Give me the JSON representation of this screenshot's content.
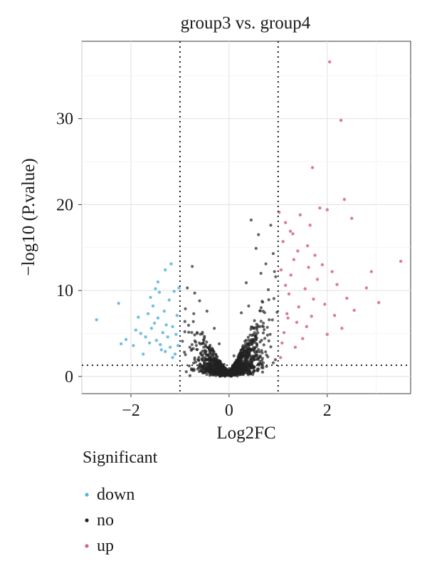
{
  "chart_data": {
    "type": "scatter",
    "title": "group3 vs. group4",
    "xlabel": "Log2FC",
    "ylabel": "−log10 (P.value)",
    "xlim": [
      -3.0,
      3.7
    ],
    "ylim": [
      -2.0,
      39.0
    ],
    "xticks": [
      -2,
      0,
      2
    ],
    "xtick_labels": [
      "−2",
      "0",
      "2"
    ],
    "yticks": [
      0,
      10,
      20,
      30
    ],
    "ytick_labels": [
      "0",
      "10",
      "20",
      "30"
    ],
    "grid": true,
    "thresholds": {
      "log2fc": [
        -1,
        1
      ],
      "neg_log10_p": 1.3
    },
    "legend": {
      "title": "Significant",
      "position": "bottom-left",
      "entries": [
        {
          "label": "down",
          "color": "#5ab4de"
        },
        {
          "label": "no",
          "color": "#222222"
        },
        {
          "label": "up",
          "color": "#d4668a"
        }
      ]
    },
    "series": [
      {
        "name": "down",
        "color": "#5ab4de",
        "points": [
          [
            -2.7,
            6.6
          ],
          [
            -2.25,
            8.5
          ],
          [
            -2.2,
            3.8
          ],
          [
            -2.1,
            4.3
          ],
          [
            -1.95,
            3.6
          ],
          [
            -1.9,
            5.4
          ],
          [
            -1.85,
            6.9
          ],
          [
            -1.75,
            2.6
          ],
          [
            -1.7,
            4.6
          ],
          [
            -1.65,
            7.3
          ],
          [
            -1.62,
            3.9
          ],
          [
            -1.58,
            5.6
          ],
          [
            -1.55,
            8.2
          ],
          [
            -1.52,
            6.2
          ],
          [
            -1.48,
            4.2
          ],
          [
            -1.45,
            11.0
          ],
          [
            -1.42,
            9.8
          ],
          [
            -1.38,
            3.1
          ],
          [
            -1.35,
            5.1
          ],
          [
            -1.32,
            7.6
          ],
          [
            -1.3,
            12.4
          ],
          [
            -1.28,
            6.0
          ],
          [
            -1.25,
            4.6
          ],
          [
            -1.22,
            8.9
          ],
          [
            -1.2,
            3.4
          ],
          [
            -1.18,
            13.1
          ],
          [
            -1.15,
            5.8
          ],
          [
            -1.12,
            9.9
          ],
          [
            -1.1,
            2.6
          ],
          [
            -1.08,
            4.9
          ],
          [
            -1.06,
            7.1
          ],
          [
            -1.04,
            3.6
          ],
          [
            -1.02,
            10.3
          ],
          [
            -1.15,
            2.2
          ],
          [
            -1.3,
            2.9
          ],
          [
            -1.45,
            6.8
          ],
          [
            -1.6,
            9.2
          ],
          [
            -1.8,
            5.0
          ],
          [
            -1.5,
            10.2
          ],
          [
            -1.4,
            3.7
          ]
        ]
      },
      {
        "name": "up",
        "color": "#d4668a",
        "points": [
          [
            2.05,
            36.6
          ],
          [
            2.28,
            29.8
          ],
          [
            1.7,
            24.3
          ],
          [
            2.35,
            20.6
          ],
          [
            2.5,
            18.4
          ],
          [
            1.85,
            19.6
          ],
          [
            2.0,
            19.4
          ],
          [
            1.02,
            19.1
          ],
          [
            1.15,
            17.9
          ],
          [
            1.3,
            16.6
          ],
          [
            1.45,
            18.8
          ],
          [
            1.6,
            15.2
          ],
          [
            1.75,
            14.1
          ],
          [
            1.9,
            13.0
          ],
          [
            2.1,
            12.2
          ],
          [
            2.2,
            10.7
          ],
          [
            2.4,
            9.1
          ],
          [
            2.55,
            7.7
          ],
          [
            2.8,
            10.3
          ],
          [
            2.9,
            12.2
          ],
          [
            3.05,
            8.6
          ],
          [
            3.5,
            13.4
          ],
          [
            2.3,
            5.6
          ],
          [
            2.0,
            4.9
          ],
          [
            1.05,
            2.2
          ],
          [
            1.08,
            3.9
          ],
          [
            1.12,
            5.1
          ],
          [
            1.18,
            7.3
          ],
          [
            1.22,
            9.6
          ],
          [
            1.26,
            11.8
          ],
          [
            1.32,
            13.6
          ],
          [
            1.38,
            6.3
          ],
          [
            1.42,
            8.1
          ],
          [
            1.5,
            4.4
          ],
          [
            1.55,
            10.2
          ],
          [
            1.62,
            12.7
          ],
          [
            1.68,
            7.0
          ],
          [
            1.72,
            9.0
          ],
          [
            1.8,
            11.3
          ],
          [
            1.95,
            8.4
          ],
          [
            1.1,
            15.7
          ],
          [
            1.25,
            16.9
          ],
          [
            1.06,
            12.4
          ],
          [
            1.15,
            10.6
          ],
          [
            1.4,
            14.6
          ],
          [
            1.65,
            17.6
          ],
          [
            1.35,
            3.4
          ],
          [
            1.2,
            6.8
          ],
          [
            1.58,
            5.8
          ],
          [
            2.15,
            7.1
          ]
        ]
      },
      {
        "name": "no",
        "color": "#222222",
        "description_points": [
          [
            0.45,
            18.2
          ],
          [
            0.6,
            16.5
          ],
          [
            0.85,
            17.6
          ],
          [
            0.9,
            14.3
          ],
          [
            0.75,
            13.1
          ],
          [
            0.55,
            14.9
          ],
          [
            -0.75,
            12.8
          ],
          [
            -0.85,
            10.3
          ],
          [
            -0.6,
            8.8
          ],
          [
            -0.45,
            7.6
          ],
          [
            -0.9,
            6.4
          ],
          [
            -0.95,
            4.1
          ],
          [
            -0.7,
            9.7
          ],
          [
            0.95,
            11.6
          ],
          [
            0.8,
            10.1
          ],
          [
            0.65,
            12.0
          ],
          [
            0.35,
            10.9
          ],
          [
            0.25,
            7.4
          ],
          [
            -0.3,
            5.6
          ],
          [
            -0.2,
            3.8
          ],
          [
            0.1,
            2.4
          ],
          [
            0.0,
            0.9
          ],
          [
            -0.1,
            1.4
          ],
          [
            0.2,
            1.1
          ],
          [
            -0.5,
            2.7
          ],
          [
            0.5,
            3.1
          ],
          [
            0.7,
            6.2
          ],
          [
            -0.8,
            3.4
          ],
          [
            -0.65,
            5.1
          ],
          [
            0.4,
            8.2
          ]
        ]
      }
    ]
  }
}
